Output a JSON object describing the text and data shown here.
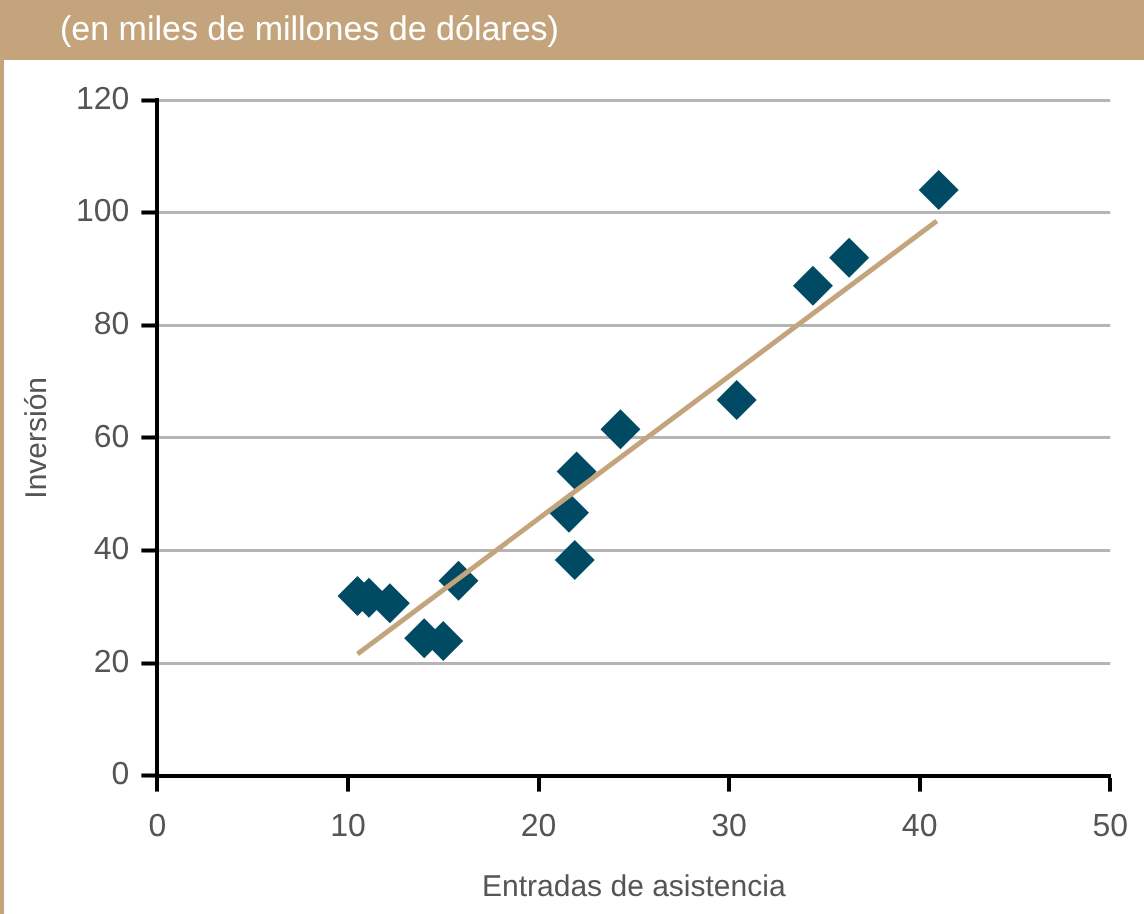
{
  "chart_data": {
    "type": "scatter",
    "subtitle": "(en miles de millones de dólares)",
    "xlabel": "Entradas de asistencia",
    "ylabel": "Inversión",
    "xlim": [
      0,
      50
    ],
    "ylim": [
      0,
      120
    ],
    "xticks": [
      0,
      10,
      20,
      30,
      40,
      50
    ],
    "yticks": [
      0,
      20,
      40,
      60,
      80,
      100,
      120
    ],
    "grid": "y",
    "marker": "diamond",
    "series": [
      {
        "type": "scatter",
        "color": "#004a63",
        "x": [
          10.5,
          11.1,
          12.2,
          14.0,
          15.0,
          15.8,
          21.6,
          22.0,
          21.9,
          24.3,
          30.4,
          34.4,
          36.3,
          41.0
        ],
        "values": [
          31.9,
          31.6,
          30.6,
          24.4,
          23.9,
          34.6,
          46.7,
          54,
          38.3,
          61.5,
          66.7,
          87,
          92,
          104
        ]
      },
      {
        "type": "line",
        "color": "#c4a47c",
        "marker": "none",
        "x": [
          10.5,
          40.9
        ],
        "values": [
          21.6,
          98.5
        ]
      }
    ]
  }
}
